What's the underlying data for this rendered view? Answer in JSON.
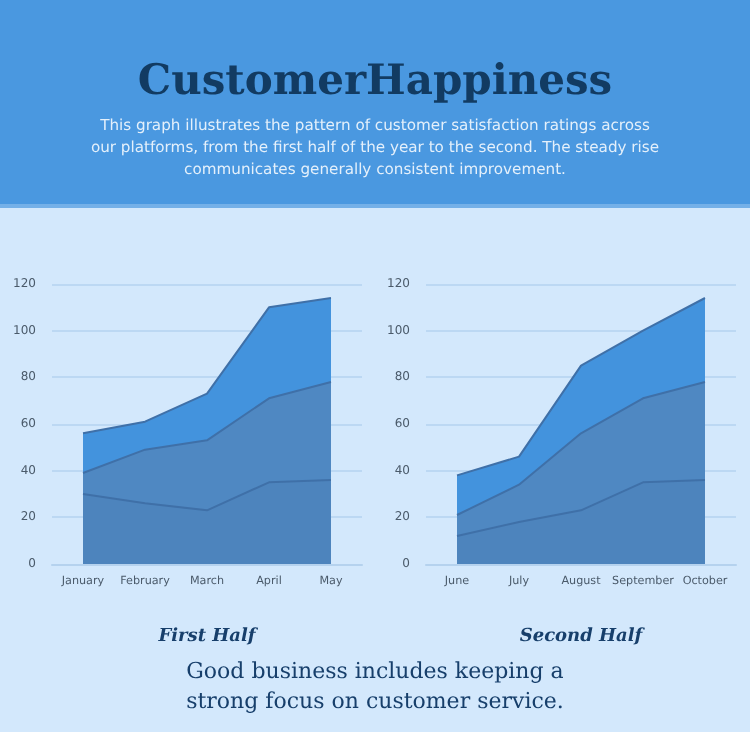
{
  "chart_data": [
    {
      "type": "area",
      "title": "CustomerHappiness",
      "subtitle": "This graph illustrates the pattern of customer satisfaction ratings across our platforms, from the first half of the year to the second. The steady rise communicates generally consistent improvement.",
      "xlabel": "First Half",
      "categories": [
        "January",
        "February",
        "March",
        "April",
        "May"
      ],
      "stacked": true,
      "series": [
        {
          "color": "#4d84bd",
          "values": [
            30,
            26,
            23,
            35,
            36
          ]
        },
        {
          "color": "#4f88c2",
          "values": [
            9,
            23,
            30,
            36,
            42
          ]
        },
        {
          "color": "#4393dd",
          "values": [
            17,
            12,
            20,
            39,
            36
          ]
        }
      ],
      "ylim": [
        0,
        120
      ],
      "yticks": [
        0,
        20,
        40,
        60,
        80,
        100,
        120
      ],
      "grid": "y",
      "marker": "none"
    },
    {
      "type": "area",
      "xlabel": "Second Half",
      "annotations": [
        "Good business includes keeping a strong focus on customer service."
      ],
      "categories": [
        "June",
        "July",
        "August",
        "September",
        "October"
      ],
      "stacked": true,
      "series": [
        {
          "color": "#4d84bd",
          "values": [
            12,
            18,
            23,
            35,
            36
          ]
        },
        {
          "color": "#4f88c2",
          "values": [
            9,
            16,
            33,
            36,
            42
          ]
        },
        {
          "color": "#4393dd",
          "values": [
            17,
            12,
            29,
            29,
            36
          ]
        }
      ],
      "ylim": [
        0,
        120
      ],
      "yticks": [
        0,
        20,
        40,
        60,
        80,
        100,
        120
      ],
      "grid": "y",
      "marker": "none"
    }
  ]
}
